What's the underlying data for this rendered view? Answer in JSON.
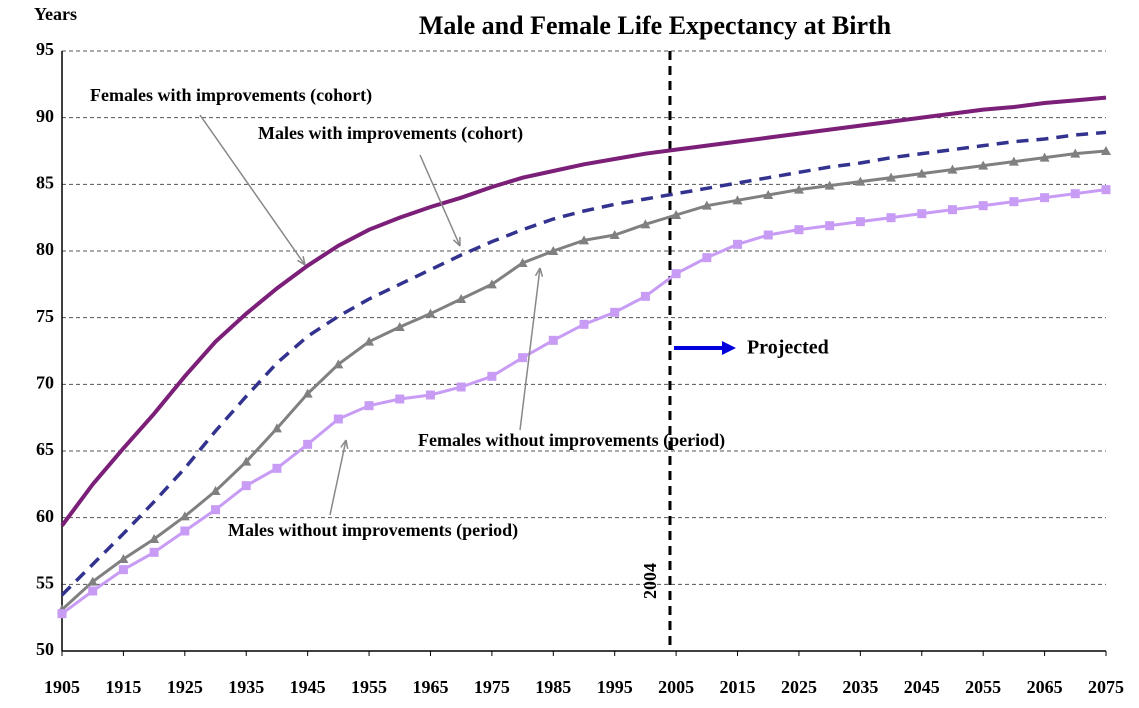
{
  "chart_data": {
    "type": "line",
    "title": "Male and Female Life Expectancy at Birth",
    "y_label": "Years",
    "x": [
      1905,
      1910,
      1915,
      1920,
      1925,
      1930,
      1935,
      1940,
      1945,
      1950,
      1955,
      1960,
      1965,
      1970,
      1975,
      1980,
      1985,
      1990,
      1995,
      2000,
      2005,
      2010,
      2015,
      2020,
      2025,
      2030,
      2035,
      2040,
      2045,
      2050,
      2055,
      2060,
      2065,
      2070,
      2075
    ],
    "xlim": [
      1905,
      2075
    ],
    "xticks": [
      1905,
      1915,
      1925,
      1935,
      1945,
      1955,
      1965,
      1975,
      1985,
      1995,
      2005,
      2015,
      2025,
      2035,
      2045,
      2055,
      2065,
      2075
    ],
    "ylim": [
      50,
      95
    ],
    "yticks": [
      50,
      55,
      60,
      65,
      70,
      75,
      80,
      85,
      90,
      95
    ],
    "grid": true,
    "series": [
      {
        "name": "Females with improvements (cohort)",
        "color": "#7b1f78",
        "style": "solid",
        "values": [
          59.4,
          62.5,
          65.2,
          67.8,
          70.6,
          73.2,
          75.3,
          77.2,
          78.9,
          80.4,
          81.6,
          82.5,
          83.3,
          84.0,
          84.8,
          85.5,
          86.0,
          86.5,
          86.9,
          87.3,
          87.6,
          87.9,
          88.2,
          88.5,
          88.8,
          89.1,
          89.4,
          89.7,
          90.0,
          90.3,
          90.6,
          90.8,
          91.1,
          91.3,
          91.5
        ]
      },
      {
        "name": "Males with improvements (cohort)",
        "color": "#33338f",
        "style": "dashed",
        "values": [
          54.2,
          56.5,
          58.8,
          61.2,
          63.7,
          66.5,
          69.1,
          71.6,
          73.6,
          75.1,
          76.4,
          77.5,
          78.6,
          79.7,
          80.7,
          81.6,
          82.4,
          83.0,
          83.5,
          83.9,
          84.3,
          84.7,
          85.1,
          85.5,
          85.9,
          86.3,
          86.6,
          87.0,
          87.3,
          87.6,
          87.9,
          88.2,
          88.4,
          88.7,
          88.9
        ]
      },
      {
        "name": "Females without improvements (period)",
        "color": "#808080",
        "style": "triangle",
        "values": [
          53.1,
          55.2,
          56.9,
          58.4,
          60.1,
          62.0,
          64.2,
          66.7,
          69.3,
          71.5,
          73.2,
          74.3,
          75.3,
          76.4,
          77.5,
          79.1,
          80.0,
          80.8,
          81.2,
          82.0,
          82.7,
          83.4,
          83.8,
          84.2,
          84.6,
          84.9,
          85.2,
          85.5,
          85.8,
          86.1,
          86.4,
          86.7,
          87.0,
          87.3,
          87.5
        ]
      },
      {
        "name": "Males without improvements (period)",
        "color": "#c89cf5",
        "style": "square",
        "values": [
          52.8,
          54.5,
          56.1,
          57.4,
          59.0,
          60.6,
          62.4,
          63.7,
          65.5,
          67.4,
          68.4,
          68.9,
          69.2,
          69.8,
          70.6,
          72.0,
          73.3,
          74.5,
          75.4,
          76.6,
          78.3,
          79.5,
          80.5,
          81.2,
          81.6,
          81.9,
          82.2,
          82.5,
          82.8,
          83.1,
          83.4,
          83.7,
          84.0,
          84.3,
          84.6
        ]
      }
    ],
    "vline": {
      "x": 2004,
      "label": "2004"
    },
    "projection_label": "Projected"
  }
}
